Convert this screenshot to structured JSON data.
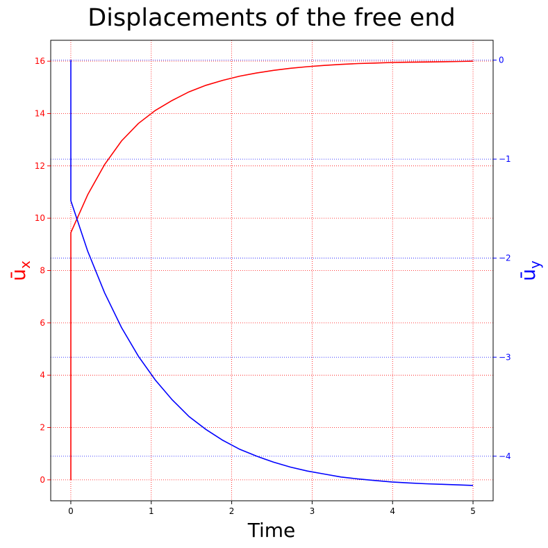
{
  "chart_data": {
    "type": "line",
    "title": "Displacements of the free end",
    "xlabel": "Time",
    "ylabel_left": "ū",
    "ylabel_left_sub": "x",
    "ylabel_right": "ū",
    "ylabel_right_sub": "y",
    "xlim": [
      -0.25,
      5.25
    ],
    "ylim_left": [
      -0.8,
      16.8
    ],
    "ylim_right": [
      -4.45,
      0.2
    ],
    "x_ticks": [
      0,
      1,
      2,
      3,
      4,
      5
    ],
    "y_left_ticks": [
      0,
      2,
      4,
      6,
      8,
      10,
      12,
      14,
      16
    ],
    "y_right_ticks": [
      0,
      -1,
      -2,
      -3,
      -4
    ],
    "grid": true,
    "colors": {
      "left": "#ff0000",
      "right": "#0000ff",
      "axis": "#000000"
    },
    "series": [
      {
        "axis": "left",
        "color": "#ff0000",
        "x": [
          0,
          0,
          0.21,
          0.42,
          0.63,
          0.84,
          1.05,
          1.26,
          1.47,
          1.68,
          1.89,
          2.1,
          2.31,
          2.52,
          2.73,
          2.94,
          3.15,
          3.36,
          3.57,
          3.78,
          3.99,
          4.2,
          4.41,
          4.62,
          4.83,
          5.0
        ],
        "y": [
          0,
          9.45,
          10.9,
          12.05,
          12.95,
          13.62,
          14.12,
          14.5,
          14.83,
          15.08,
          15.27,
          15.43,
          15.55,
          15.65,
          15.73,
          15.79,
          15.84,
          15.88,
          15.91,
          15.93,
          15.95,
          15.96,
          15.97,
          15.98,
          15.99,
          16.0
        ]
      },
      {
        "axis": "right",
        "color": "#0000ff",
        "x": [
          0,
          0,
          0.21,
          0.42,
          0.63,
          0.84,
          1.05,
          1.26,
          1.47,
          1.68,
          1.89,
          2.1,
          2.31,
          2.52,
          2.73,
          2.94,
          3.15,
          3.36,
          3.57,
          3.78,
          3.99,
          4.2,
          4.41,
          4.62,
          4.83,
          5.0
        ],
        "y": [
          0,
          -1.42,
          -1.93,
          -2.35,
          -2.7,
          -2.99,
          -3.23,
          -3.43,
          -3.6,
          -3.73,
          -3.84,
          -3.93,
          -4.0,
          -4.06,
          -4.11,
          -4.15,
          -4.18,
          -4.21,
          -4.23,
          -4.245,
          -4.26,
          -4.27,
          -4.278,
          -4.284,
          -4.29,
          -4.295
        ]
      }
    ]
  }
}
